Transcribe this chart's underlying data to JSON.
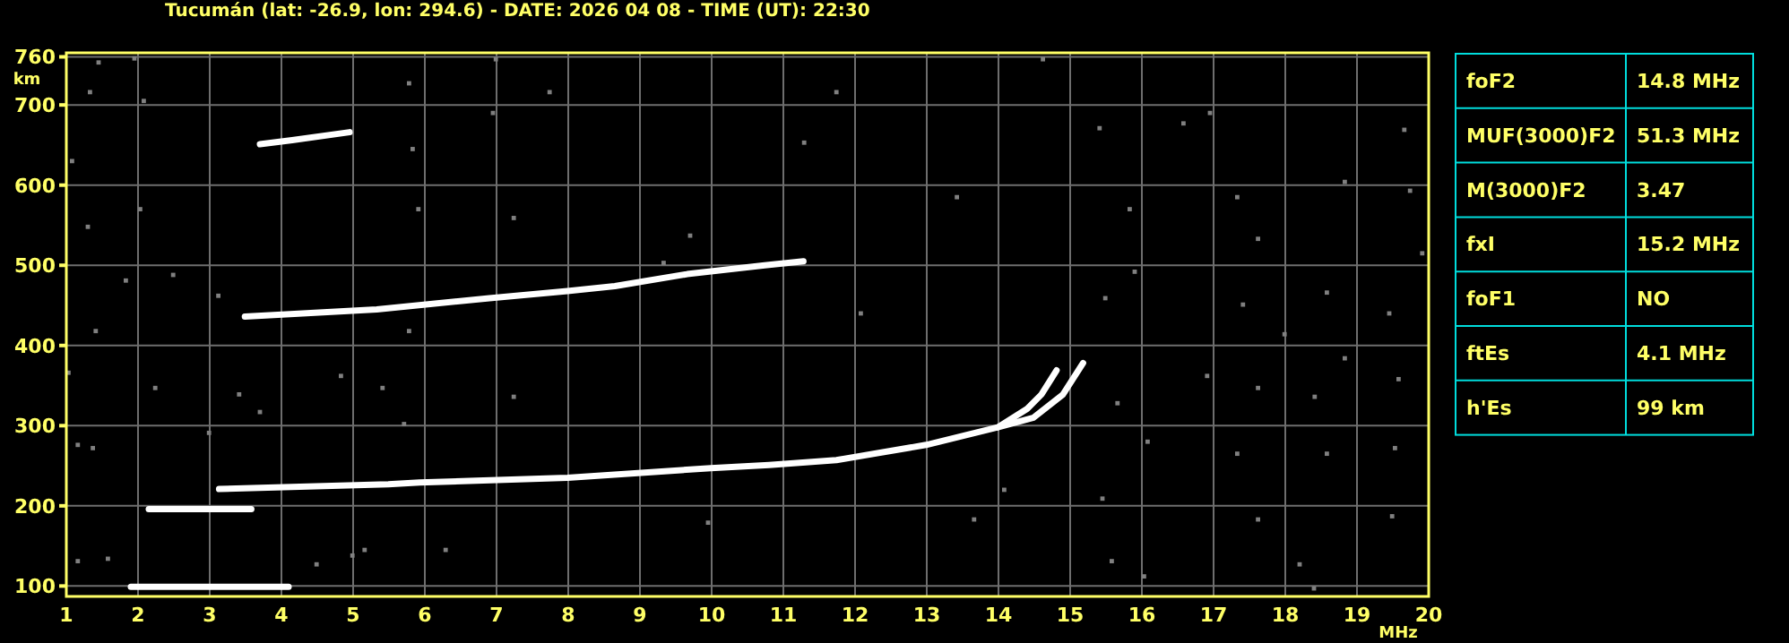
{
  "chart_data": [
    {
      "type": "scatter",
      "title": "Tucumán (lat: -26.9, lon: 294.6) - DATE: 2026 04 08 - TIME (UT): 22:30",
      "xlabel": "MHz",
      "ylabel": "km",
      "xlim": [
        1,
        20
      ],
      "xticks": [
        1,
        2,
        3,
        4,
        5,
        6,
        7,
        8,
        9,
        10,
        11,
        12,
        13,
        14,
        15,
        16,
        17,
        18,
        19,
        20
      ],
      "ylim": [
        87,
        765
      ],
      "yticks": [
        100,
        200,
        300,
        400,
        500,
        600,
        700,
        760
      ],
      "grid": true,
      "series": [
        {
          "type": "line",
          "line_style": "solid",
          "color": "#ffffff",
          "x": [
            3.13,
            5.49,
            5.93,
            7.99,
            9.99,
            10.8,
            11.74,
            12.99,
            13.99,
            14.4,
            14.6,
            14.81
          ],
          "values": [
            221,
            227,
            229,
            235,
            247,
            251,
            257,
            276,
            298,
            321,
            339,
            369
          ]
        },
        {
          "type": "line",
          "line_style": "solid",
          "color": "#ffffff",
          "x": [
            13.99,
            14.49,
            14.9,
            15.18
          ],
          "values": [
            298,
            310,
            339,
            378
          ]
        },
        {
          "type": "line",
          "line_style": "solid",
          "color": "#ffffff",
          "x": [
            2.15,
            3.58
          ],
          "values": [
            196,
            196
          ]
        },
        {
          "type": "line",
          "line_style": "solid",
          "color": "#ffffff",
          "x": [
            1.9,
            4.1
          ],
          "values": [
            99,
            99
          ]
        },
        {
          "type": "line",
          "line_style": "solid",
          "color": "#ffffff",
          "x": [
            3.49,
            5.33,
            6.9,
            7.99,
            8.65,
            9.66,
            10.74,
            11.28
          ],
          "values": [
            436,
            445,
            459,
            468,
            474,
            489,
            500,
            505
          ]
        },
        {
          "type": "line",
          "line_style": "solid",
          "color": "#ffffff",
          "x": [
            3.7,
            4.15,
            4.95
          ],
          "values": [
            651,
            656,
            666
          ]
        },
        {
          "marker": "square",
          "color": "#808080",
          "x": [
            11.74,
            15.41,
            16.95,
            19.66,
            16.58,
            18.83,
            17.33,
            19.74,
            15.83,
            17.62,
            19.91,
            15.9,
            18.58,
            17.41,
            15.49,
            19.45,
            17.99,
            16.91,
            18.83,
            19.58,
            15.66,
            17.62,
            18.41,
            16.08,
            17.33,
            18.58,
            19.53,
            15.45,
            17.62,
            19.49,
            18.2,
            16.03,
            15.58,
            18.4,
            13.66,
            14.08,
            12.08,
            13.42,
            11.29,
            14.62,
            1.45,
            1.95,
            2.08,
            1.33,
            1.08,
            1.3,
            2.03,
            1.83,
            1.41,
            1.03,
            2.24,
            3.41,
            3.7,
            2.99,
            1.16,
            1.58,
            1.16,
            4.49,
            4.99,
            5.16,
            5.78,
            5.83,
            5.91,
            5.78,
            5.71,
            6.29,
            6.99,
            6.95,
            7.24,
            7.24,
            7.74,
            9.7,
            9.95,
            9.33,
            4.83,
            5.41,
            2.49,
            3.12,
            1.37
          ],
          "values": [
            716,
            671,
            690,
            669,
            677,
            604,
            585,
            593,
            570,
            533,
            515,
            492,
            466,
            451,
            459,
            440,
            414,
            362,
            384,
            358,
            328,
            347,
            336,
            280,
            265,
            265,
            272,
            209,
            183,
            187,
            127,
            112,
            131,
            97,
            183,
            220,
            440,
            585,
            653,
            757,
            753,
            758,
            705,
            716,
            630,
            548,
            570,
            481,
            418,
            366,
            347,
            339,
            317,
            291,
            276,
            134,
            131,
            127,
            138,
            145,
            727,
            645,
            570,
            418,
            302,
            145,
            757,
            690,
            559,
            336,
            716,
            537,
            179,
            503,
            362,
            347,
            488,
            462,
            272
          ]
        }
      ]
    },
    {
      "type": "other",
      "categories": [
        "foF2",
        "MUF(3000)F2",
        "M(3000)F2",
        "fxI",
        "foF1",
        "ftEs",
        "h'Es"
      ],
      "value_labels": [
        "14.8 MHz",
        "51.3 MHz",
        "3.47",
        "15.2 MHz",
        "NO",
        "4.1 MHz",
        "99 km"
      ]
    }
  ]
}
